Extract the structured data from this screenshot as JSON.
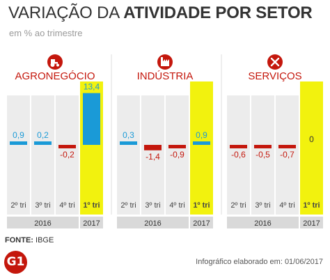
{
  "header": {
    "title_light": "VARIAÇÃO DA",
    "title_bold": "ATIVIDADE POR SETOR",
    "subtitle": "em % ao trimestre"
  },
  "colors": {
    "accent_red": "#c4170c",
    "positive_blue": "#1a9ad7",
    "negative_red": "#c4170c",
    "highlight_yellow": "#f2f20e",
    "column_bg": "#ececec",
    "year_bar_bg": "#d9d9d9"
  },
  "chart_data": {
    "type": "bar",
    "quarters": [
      "2º tri",
      "3º tri",
      "4º tri",
      "1º tri"
    ],
    "years": [
      {
        "label": "2016",
        "span": 3
      },
      {
        "label": "2017",
        "span": 1
      }
    ],
    "highlighted_quarter": 3,
    "panels": [
      {
        "name": "AGRONEGÓCIO",
        "icon": "tractor-icon",
        "values": [
          0.9,
          0.2,
          -0.2,
          13.4
        ],
        "labels": [
          "0,9",
          "0,2",
          "-0,2",
          "13,4"
        ]
      },
      {
        "name": "INDÚSTRIA",
        "icon": "factory-icon",
        "values": [
          0.3,
          -1.4,
          -0.9,
          0.9
        ],
        "labels": [
          "0,3",
          "-1,4",
          "-0,9",
          "0,9"
        ]
      },
      {
        "name": "SERVIÇOS",
        "icon": "tools-icon",
        "values": [
          -0.6,
          -0.5,
          -0.7,
          0
        ],
        "labels": [
          "-0,6",
          "-0,5",
          "-0,7",
          "0"
        ]
      }
    ]
  },
  "footer": {
    "source_label": "FONTE:",
    "source_value": "IBGE",
    "logo": "G1",
    "credit": "Infográfico elaborado em: 01/06/2017"
  }
}
